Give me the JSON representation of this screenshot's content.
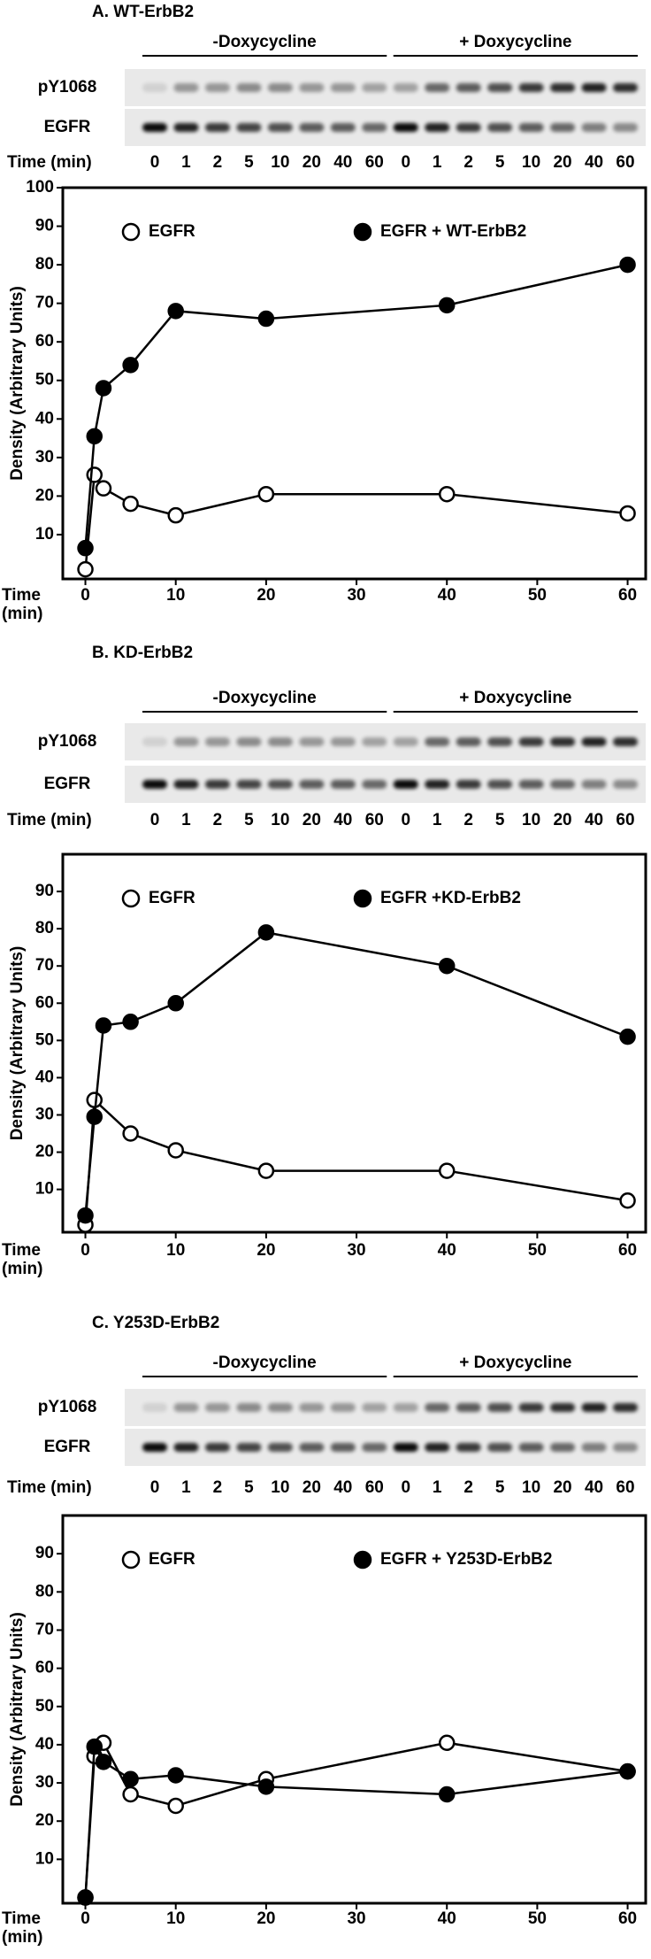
{
  "chart_data": [
    {
      "type": "line",
      "title": "A. WT-ErbB2",
      "blot": {
        "groups": [
          "-Doxycycline",
          "+ Doxycycline"
        ],
        "rows": [
          "pY1068",
          "EGFR"
        ],
        "time_label": "Time (min)",
        "lanes": [
          0,
          1,
          2,
          5,
          10,
          20,
          40,
          60
        ]
      },
      "xlabel": [
        "Time",
        "(min)"
      ],
      "ylabel": "Density (Arbitrary Units)",
      "xlim": [
        -2.5,
        62
      ],
      "ylim": [
        -1.5,
        100
      ],
      "xticks": [
        0,
        10,
        20,
        30,
        40,
        50,
        60
      ],
      "yticks": [
        10,
        20,
        30,
        40,
        50,
        60,
        70,
        80,
        90,
        100
      ],
      "series": [
        {
          "name": "EGFR",
          "marker": "open",
          "color": "#000000",
          "x": [
            0,
            1,
            2,
            5,
            10,
            20,
            40,
            60
          ],
          "values": [
            1,
            25.5,
            22,
            18,
            15,
            20.5,
            20.5,
            15.5
          ]
        },
        {
          "name": "EGFR + WT-ErbB2",
          "marker": "filled",
          "color": "#000000",
          "x": [
            0,
            1,
            2,
            5,
            10,
            20,
            40,
            60
          ],
          "values": [
            6.5,
            35.5,
            48,
            54,
            68,
            66,
            69.5,
            80
          ]
        }
      ]
    },
    {
      "type": "line",
      "title": "B. KD-ErbB2",
      "blot": {
        "groups": [
          "-Doxycycline",
          "+ Doxycycline"
        ],
        "rows": [
          "pY1068",
          "EGFR"
        ],
        "time_label": "Time (min)",
        "lanes": [
          0,
          1,
          2,
          5,
          10,
          20,
          40,
          60
        ]
      },
      "xlabel": [
        "Time",
        "(min)"
      ],
      "ylabel": "Density (Arbitrary Units)",
      "xlim": [
        -2.5,
        62
      ],
      "ylim": [
        -1.5,
        100
      ],
      "xticks": [
        0,
        10,
        20,
        30,
        40,
        50,
        60
      ],
      "yticks": [
        10,
        20,
        30,
        40,
        50,
        60,
        70,
        80,
        90
      ],
      "series": [
        {
          "name": "EGFR",
          "marker": "open",
          "color": "#000000",
          "x": [
            0,
            1,
            5,
            10,
            20,
            40,
            60
          ],
          "values": [
            0.5,
            34,
            25,
            20.5,
            15,
            15,
            7
          ]
        },
        {
          "name": "EGFR +KD-ErbB2",
          "marker": "filled",
          "color": "#000000",
          "x": [
            0,
            1,
            2,
            5,
            10,
            20,
            40,
            60
          ],
          "values": [
            3,
            29.5,
            54,
            55,
            60,
            79,
            70,
            51
          ]
        }
      ]
    },
    {
      "type": "line",
      "title": "C. Y253D-ErbB2",
      "blot": {
        "groups": [
          "-Doxycycline",
          "+ Doxycycline"
        ],
        "rows": [
          "pY1068",
          "EGFR"
        ],
        "time_label": "Time (min)",
        "lanes": [
          0,
          1,
          2,
          5,
          10,
          20,
          40,
          60
        ]
      },
      "xlabel": [
        "Time",
        "(min)"
      ],
      "ylabel": "Density (Arbitrary Units)",
      "xlim": [
        -2.5,
        62
      ],
      "ylim": [
        -1.5,
        100
      ],
      "xticks": [
        0,
        10,
        20,
        30,
        40,
        50,
        60
      ],
      "yticks": [
        10,
        20,
        30,
        40,
        50,
        60,
        70,
        80,
        90
      ],
      "series": [
        {
          "name": "EGFR",
          "marker": "open",
          "color": "#000000",
          "x": [
            0,
            1,
            2,
            5,
            10,
            20,
            40,
            60
          ],
          "values": [
            0,
            37,
            40.5,
            27,
            24,
            31,
            40.5,
            33
          ]
        },
        {
          "name": "EGFR + Y253D-ErbB2",
          "marker": "filled",
          "color": "#000000",
          "x": [
            0,
            1,
            2,
            5,
            10,
            20,
            40,
            60
          ],
          "values": [
            0,
            39.5,
            35.5,
            31,
            32,
            29,
            27,
            33
          ]
        }
      ]
    }
  ]
}
